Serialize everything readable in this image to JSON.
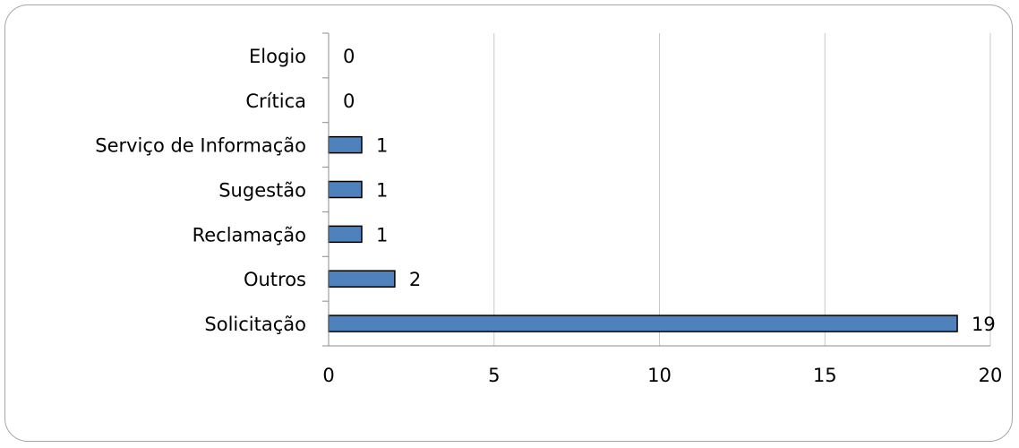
{
  "chart_data": {
    "type": "bar",
    "orientation": "horizontal",
    "categories": [
      "Elogio",
      "Crítica",
      "Serviço de Informação",
      "Sugestão",
      "Reclamação",
      "Outros",
      "Solicitação"
    ],
    "values": [
      0,
      0,
      1,
      1,
      1,
      2,
      19
    ],
    "data_labels": [
      "0",
      "0",
      "1",
      "1",
      "1",
      "2",
      "19"
    ],
    "xlim": [
      0,
      20
    ],
    "x_ticks": [
      0,
      5,
      10,
      15,
      20
    ],
    "x_tick_labels": [
      "0",
      "5",
      "10",
      "15",
      "20"
    ],
    "title": "",
    "xlabel": "",
    "ylabel": "",
    "grid": "vertical",
    "legend": "none",
    "colors": {
      "bar_fill": "#4f81bd",
      "bar_stroke": "#000000",
      "grid": "#c8c8c8",
      "axis": "#8c8c8c"
    }
  }
}
